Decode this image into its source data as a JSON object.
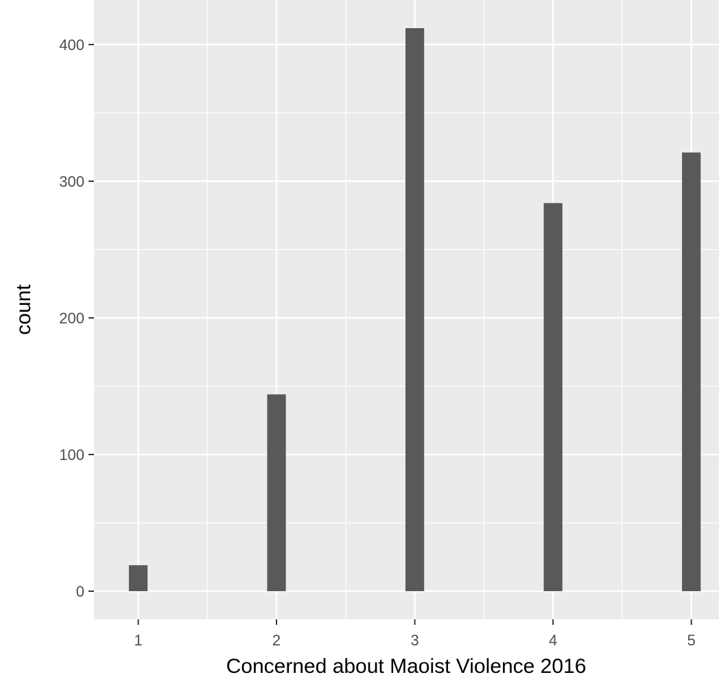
{
  "chart_data": {
    "type": "bar",
    "title": "",
    "xlabel": "Concerned about Maoist Violence 2016",
    "ylabel": "count",
    "x": [
      1,
      2,
      3,
      4,
      5
    ],
    "values": [
      19,
      144,
      412,
      284,
      321
    ],
    "x_tick_labels": [
      "1",
      "2",
      "3",
      "4",
      "5"
    ],
    "y_ticks": [
      0,
      100,
      200,
      300,
      400
    ],
    "y_tick_labels": [
      "0",
      "100",
      "200",
      "300",
      "400"
    ],
    "xlim": [
      0.68,
      5.2
    ],
    "ylim": [
      -20.6,
      432.6
    ],
    "grid": true,
    "legend": "none",
    "colors": {
      "panel": "#ebebeb",
      "grid": "#ffffff",
      "bar": "#595959",
      "tick_mark": "#333333"
    }
  }
}
